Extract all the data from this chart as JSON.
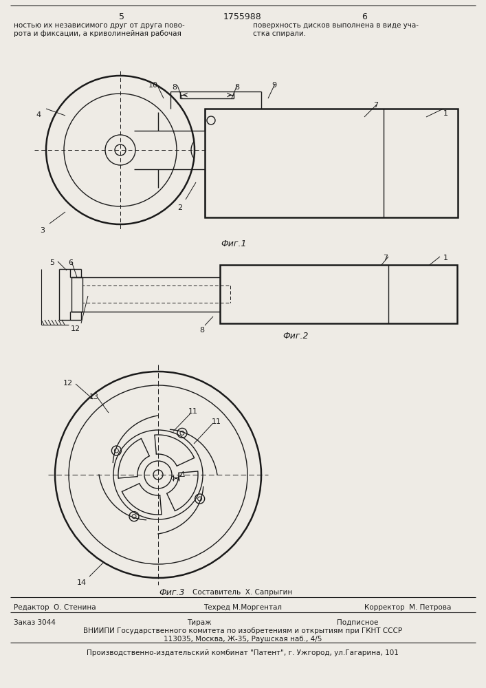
{
  "bg_color": "#eeebe5",
  "line_color": "#1a1a1a",
  "page_left": "5",
  "patent": "1755988",
  "page_right": "6",
  "header_text_left1": "ностью их независимого друг от друга пово-",
  "header_text_left2": "рота и фиксации, а криволинейная рабочая",
  "header_text_right1": "поверхность дисков выполнена в виде уча-",
  "header_text_right2": "стка спирали.",
  "fig1_caption": "Фиг.1",
  "fig2_caption": "Фиг.2",
  "fig3_caption": "Фиг.3",
  "footer_composer": "Составитель  Х. Сапрыгин",
  "footer_editor": "Редактор  О. Стенина",
  "footer_techred": "Техред М.Моргентал",
  "footer_corrector": "Корректор  М. Петрова",
  "footer_order": "Заказ 3044",
  "footer_tirazh": "Тираж",
  "footer_podpisnoe": "Подписное",
  "footer_vniipи": "ВНИИПИ Государственного комитета по изобретениям и открытиям при ГКНТ СССР",
  "footer_addr": "113035, Москва, Ж-35, Раушская наб., 4/5",
  "footer_patent": "Производственно-издательский комбинат \"Патент\", г. Ужгород, ул.Гагарина, 101"
}
